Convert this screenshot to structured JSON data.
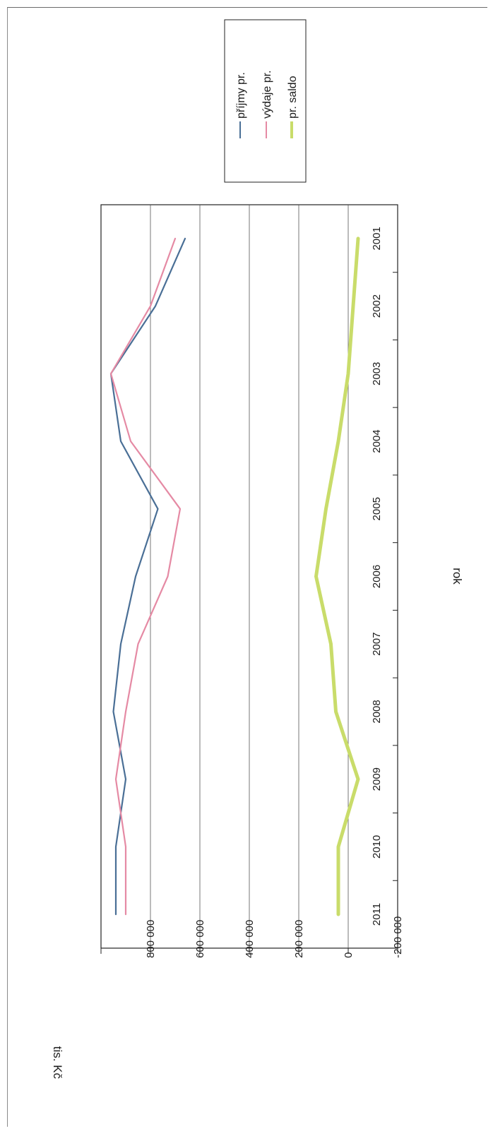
{
  "chart_data": {
    "type": "line",
    "orientation": "rotated-90-clockwise",
    "title": "",
    "xlabel": "rok",
    "ylabel": "tis. Kč",
    "categories": [
      "2001",
      "2002",
      "2003",
      "2004",
      "2005",
      "2006",
      "2007",
      "2008",
      "2009",
      "2010",
      "2011"
    ],
    "y_ticks": [
      "-200 000",
      "0",
      "200 000",
      "400 000",
      "600 000",
      "800 000"
    ],
    "y_tick_values": [
      -200000,
      0,
      200000,
      400000,
      600000,
      800000
    ],
    "ylim": [
      -200000,
      1000000
    ],
    "grid": true,
    "legend_position": "right",
    "series": [
      {
        "name": "příjmy pr.",
        "color": "#4a6f96",
        "values": [
          660000,
          780000,
          960000,
          920000,
          770000,
          860000,
          920000,
          950000,
          900000,
          940000,
          940000
        ]
      },
      {
        "name": "výdaje pr.",
        "color": "#e58aa4",
        "values": [
          700000,
          800000,
          960000,
          880000,
          680000,
          730000,
          850000,
          900000,
          940000,
          900000,
          900000
        ]
      },
      {
        "name": "pr. saldo",
        "color": "#c9dc6a",
        "values": [
          -40000,
          -20000,
          0,
          40000,
          90000,
          130000,
          70000,
          50000,
          -40000,
          40000,
          40000
        ]
      }
    ]
  }
}
